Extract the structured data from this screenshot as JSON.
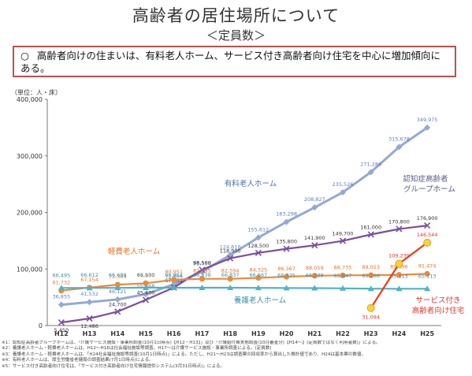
{
  "page": {
    "title": "高齢者の居住場所について",
    "subtitle": "＜定員数＞",
    "summary_mark": "○",
    "summary": "高齢者向けの住まいは、有料老人ホーム、サービス付き高齢者向け住宅を中心に増加傾向にある。",
    "notes": [
      "※1：認知症高齢者グループホームは、「介護サービス施設・事業所調査(10月1日時点)【H12・H13】」及び「介護給付費実態調査(10月審査分)【H14～】(定員数ではなく利用者数)」による。",
      "※2：養護老人ホーム・軽費老人ホームは、H12～H16は社会福祉施設等調査、H17～は介護サービス施設・事業所調査による。(定員数)",
      "※3：養護老人ホーム・軽費老人ホームは、「H24社会福祉施設等調査(10月1日時点)」による。ただし、H21～H23は調査票の回収率から算出した推計値であり、H24は基本票の数値。",
      "※4：有料老人ホームは、厚生労働省老健局の調査結果(7月1日時点)による。",
      "※5：サービス付き高齢者向け住宅は、「サービス付き高齢者向け住宅情報提供システム(3月31日時点)」による。"
    ]
  },
  "chart_data": {
    "type": "line",
    "ylabel": "（単位：人・床）",
    "ylim": [
      0,
      400000
    ],
    "yticks": [
      0,
      100000,
      200000,
      300000,
      400000
    ],
    "ytick_labels": [
      "0",
      "100,000",
      "200,000",
      "300,000",
      "400,000"
    ],
    "categories": [
      "H12",
      "H13",
      "H14",
      "H15",
      "H16",
      "H17",
      "H18",
      "H19",
      "H20",
      "H21",
      "H22",
      "H23",
      "H24",
      "H25"
    ],
    "series": [
      {
        "name": "有料老人ホーム",
        "color": "#95a9d2",
        "marker": "diamond",
        "values": [
          36855,
          41532,
          46121,
          55468,
          72866,
          95454,
          124610,
          155612,
          183298,
          208827,
          235526,
          271286,
          315678,
          349975
        ],
        "labels": [
          "36,855",
          "41,532",
          "46,121",
          "55,468",
          "72,866",
          "95,454",
          "124,610",
          "155,612",
          "183,298",
          "208,827",
          "235,526",
          "271,286",
          "315,678",
          "349,975"
        ],
        "label_color": "#5b7fc4"
      },
      {
        "name": "認知症高齢者グループホーム",
        "color": "#7b4f9e",
        "marker": "x",
        "values": [
          5450,
          12486,
          24700,
          45400,
          67181,
          98500,
          118900,
          128500,
          135800,
          141900,
          149700,
          161000,
          170800,
          176900
        ],
        "labels": [
          "5,450",
          "12,486",
          "24,700",
          "45,400",
          "67,181",
          "98,500",
          "118,900",
          "128,500",
          "135,800",
          "141,900",
          "149,700",
          "161,000",
          "170,800",
          "176,900"
        ],
        "label_color": "#333333"
      },
      {
        "name": "軽費老人ホーム",
        "color": "#ec8a3b",
        "marker": "circle",
        "values": [
          61732,
          67154,
          72364,
          74800,
          80951,
          82595,
          82594,
          84325,
          86367,
          88059,
          88735,
          89053,
          89696,
          91474
        ],
        "labels": [
          "61,732",
          "67,154",
          "72,364",
          "74,800",
          "80,951",
          "82,595",
          "82,594",
          "84,325",
          "86,367",
          "88,059",
          "88,735",
          "89,053",
          "89,696",
          "91,474"
        ],
        "label_color": "#e8742a"
      },
      {
        "name": "養護老人ホーム",
        "color": "#4eb3c4",
        "marker": "triangle",
        "values": [
          66495,
          66612,
          66686,
          66970,
          66951,
          66838,
          66837,
          66667,
          66375,
          66239,
          65847,
          65186,
          65113,
          65113
        ],
        "labels": [
          "66,495",
          "66,612",
          "66,686",
          "66,970",
          "66,951",
          "66,838",
          "66,837",
          "66,667",
          "66,375",
          "66,239",
          "65,847",
          "65,186",
          "65,113",
          "65,113"
        ],
        "label_color": "#3a8fa5"
      },
      {
        "name": "サービス付き高齢者向け住宅",
        "color": "#f03a12",
        "marker": "circle-yellow",
        "values": [
          null,
          null,
          null,
          null,
          null,
          null,
          null,
          null,
          null,
          null,
          null,
          31094,
          109239,
          146544
        ],
        "labels": [
          "",
          "",
          "",
          "",
          "",
          "",
          "",
          "",
          "",
          "",
          "",
          "31,094",
          "109,239",
          "146,544"
        ],
        "label_color": "#e8342a"
      }
    ],
    "series_labels": [
      {
        "text": "有料老人ホーム",
        "color": "#4a6fb5"
      },
      {
        "text": "認知症高齢者",
        "color": "#5a5a8a"
      },
      {
        "text": "グループホーム",
        "color": "#5a5a8a"
      },
      {
        "text": "軽費老人ホーム",
        "color": "#e8742a"
      },
      {
        "text": "養護老人ホーム",
        "color": "#3a8fa5"
      },
      {
        "text": "サービス付き",
        "color": "#e8342a"
      },
      {
        "text": "高齢者向け住宅",
        "color": "#e8342a"
      }
    ],
    "grid": false
  }
}
